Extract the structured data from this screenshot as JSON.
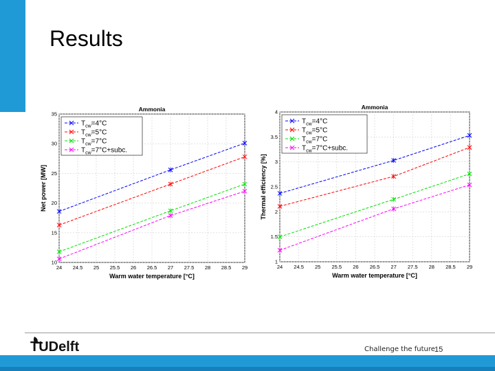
{
  "slide": {
    "title": "Results",
    "footer_tagline": "Challenge the future",
    "page_number": "15",
    "logo": "TUDelft"
  },
  "colors": {
    "accent": "#1f9ad6",
    "series": [
      "#0000ff",
      "#ff0000",
      "#00e000",
      "#ff00ff"
    ]
  },
  "chart_data": [
    {
      "type": "line",
      "title": "Ammonia",
      "xlabel": "Warm water temperature [°C]",
      "ylabel": "Net power [MW]",
      "xlim": [
        24,
        29
      ],
      "ylim": [
        10,
        35
      ],
      "xticks": [
        "24",
        "24.5",
        "25",
        "25.5",
        "26",
        "26.5",
        "27",
        "27.5",
        "28",
        "28.5",
        "29"
      ],
      "yticks": [
        "10",
        "15",
        "20",
        "25",
        "30",
        "35"
      ],
      "x": [
        24,
        27,
        29
      ],
      "legend_position": "top-left",
      "series": [
        {
          "name": "T_cw=4°C",
          "base": "T",
          "sub": "cw",
          "suffix": "=4°C",
          "values": [
            18.6,
            25.6,
            30.1
          ]
        },
        {
          "name": "T_cw=5°C",
          "base": "T",
          "sub": "cw",
          "suffix": "=5°C",
          "values": [
            16.3,
            23.2,
            27.8
          ]
        },
        {
          "name": "T_cw=7°C",
          "base": "T",
          "sub": "cw",
          "suffix": "=7°C",
          "values": [
            11.8,
            18.7,
            23.2
          ]
        },
        {
          "name": "T_cw=7°C+subc.",
          "base": "T",
          "sub": "cw",
          "suffix": "=7°C+subc.",
          "values": [
            10.6,
            17.9,
            22.0
          ]
        }
      ]
    },
    {
      "type": "line",
      "title": "Ammonia",
      "xlabel": "Warm water temperature [°C]",
      "ylabel": "Thermal efficiency [%]",
      "xlim": [
        24,
        29
      ],
      "ylim": [
        1,
        4
      ],
      "xticks": [
        "24",
        "24.5",
        "25",
        "25.5",
        "26",
        "26.5",
        "27",
        "27.5",
        "28",
        "28.5",
        "29"
      ],
      "yticks": [
        "1",
        "1.5",
        "2",
        "2.5",
        "3",
        "3.5",
        "4"
      ],
      "x": [
        24,
        27,
        29
      ],
      "legend_position": "top-left",
      "series": [
        {
          "name": "T_cw=4°C",
          "base": "T",
          "sub": "cw",
          "suffix": "=4°C",
          "values": [
            2.37,
            3.03,
            3.53
          ]
        },
        {
          "name": "T_cw=5°C",
          "base": "T",
          "sub": "cw",
          "suffix": "=5°C",
          "values": [
            2.11,
            2.71,
            3.29
          ]
        },
        {
          "name": "T_cw=7°C",
          "base": "T",
          "sub": "cw",
          "suffix": "=7°C",
          "values": [
            1.5,
            2.25,
            2.76
          ]
        },
        {
          "name": "T_cw=7°C+subc.",
          "base": "T",
          "sub": "cw",
          "suffix": "=7°C+subc.",
          "values": [
            1.23,
            2.06,
            2.54
          ]
        }
      ]
    }
  ]
}
